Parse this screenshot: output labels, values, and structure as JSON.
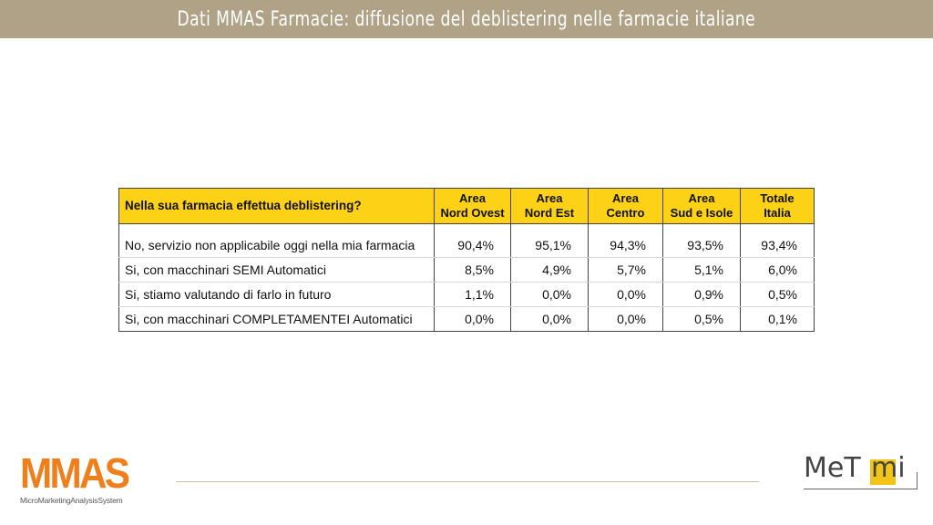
{
  "header": {
    "title": "Dati MMAS Farmacie: diffusione del deblistering nelle farmacie italiane"
  },
  "table": {
    "question": "Nella sua farmacia effettua deblistering?",
    "columns": [
      {
        "line1": "Area",
        "line2": "Nord Ovest"
      },
      {
        "line1": "Area",
        "line2": "Nord Est"
      },
      {
        "line1": "Area",
        "line2": "Centro"
      },
      {
        "line1": "Area",
        "line2": "Sud e Isole"
      },
      {
        "line1": "Totale",
        "line2": "Italia"
      }
    ],
    "rows": [
      {
        "label": "No, servizio non applicabile oggi nella mia farmacia",
        "values": [
          "90,4%",
          "95,1%",
          "94,3%",
          "93,5%",
          "93,4%"
        ]
      },
      {
        "label": "Si, con macchinari SEMI Automatici",
        "values": [
          "8,5%",
          "4,9%",
          "5,7%",
          "5,1%",
          "6,0%"
        ]
      },
      {
        "label": "Si, stiamo valutando di farlo in futuro",
        "values": [
          "1,1%",
          "0,0%",
          "0,0%",
          "0,9%",
          "0,5%"
        ]
      },
      {
        "label": "Si, con macchinari COMPLETAMENTEI Automatici",
        "values": [
          "0,0%",
          "0,0%",
          "0,0%",
          "0,5%",
          "0,1%"
        ]
      }
    ]
  },
  "footer": {
    "mmas_logo": "MMAS",
    "mmas_subtitle": "MicroMarketingAnalysisSystem",
    "metmi_logo_left": "MeT",
    "metmi_logo_right": "mi"
  },
  "colors": {
    "header_bar": "#afa286",
    "table_header": "#fcd116",
    "mmas_orange": "#ef7f1a",
    "metmi_yellow": "#f2c417"
  }
}
